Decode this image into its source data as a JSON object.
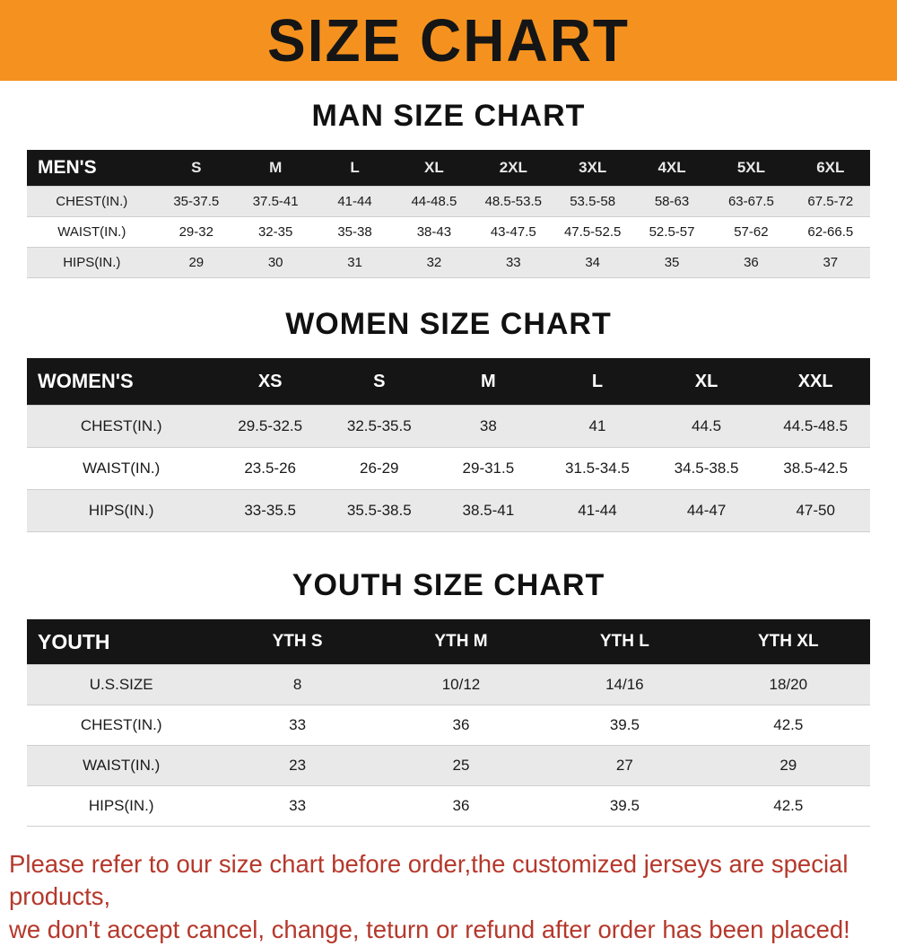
{
  "colors": {
    "banner_orange": "#f5921f",
    "header_black": "#151515",
    "stripe_gray": "#e9e9e9",
    "note_red": "#b5382b"
  },
  "banner": {
    "title": "SIZE CHART"
  },
  "men": {
    "heading": "MAN SIZE CHART",
    "columns": [
      "MEN'S",
      "S",
      "M",
      "L",
      "XL",
      "2XL",
      "3XL",
      "4XL",
      "5XL",
      "6XL"
    ],
    "rows": [
      [
        "CHEST(IN.)",
        "35-37.5",
        "37.5-41",
        "41-44",
        "44-48.5",
        "48.5-53.5",
        "53.5-58",
        "58-63",
        "63-67.5",
        "67.5-72"
      ],
      [
        "WAIST(IN.)",
        "29-32",
        "32-35",
        "35-38",
        "38-43",
        "43-47.5",
        "47.5-52.5",
        "52.5-57",
        "57-62",
        "62-66.5"
      ],
      [
        "HIPS(IN.)",
        "29",
        "30",
        "31",
        "32",
        "33",
        "34",
        "35",
        "36",
        "37"
      ]
    ]
  },
  "women": {
    "heading": "WOMEN SIZE CHART",
    "columns": [
      "WOMEN'S",
      "XS",
      "S",
      "M",
      "L",
      "XL",
      "XXL"
    ],
    "rows": [
      [
        "CHEST(IN.)",
        "29.5-32.5",
        "32.5-35.5",
        "38",
        "41",
        "44.5",
        "44.5-48.5"
      ],
      [
        "WAIST(IN.)",
        "23.5-26",
        "26-29",
        "29-31.5",
        "31.5-34.5",
        "34.5-38.5",
        "38.5-42.5"
      ],
      [
        "HIPS(IN.)",
        "33-35.5",
        "35.5-38.5",
        "38.5-41",
        "41-44",
        "44-47",
        "47-50"
      ]
    ]
  },
  "youth": {
    "heading": "YOUTH SIZE CHART",
    "columns": [
      "YOUTH",
      "YTH S",
      "YTH M",
      "YTH L",
      "YTH XL"
    ],
    "rows": [
      [
        "U.S.SIZE",
        "8",
        "10/12",
        "14/16",
        "18/20"
      ],
      [
        "CHEST(IN.)",
        "33",
        "36",
        "39.5",
        "42.5"
      ],
      [
        "WAIST(IN.)",
        "23",
        "25",
        "27",
        "29"
      ],
      [
        "HIPS(IN.)",
        "33",
        "36",
        "39.5",
        "42.5"
      ]
    ]
  },
  "note": {
    "line1": "Please refer to our size chart before order,the customized jerseys are special products,",
    "line2": "we don't accept cancel, change, teturn or refund after order has been placed!"
  }
}
